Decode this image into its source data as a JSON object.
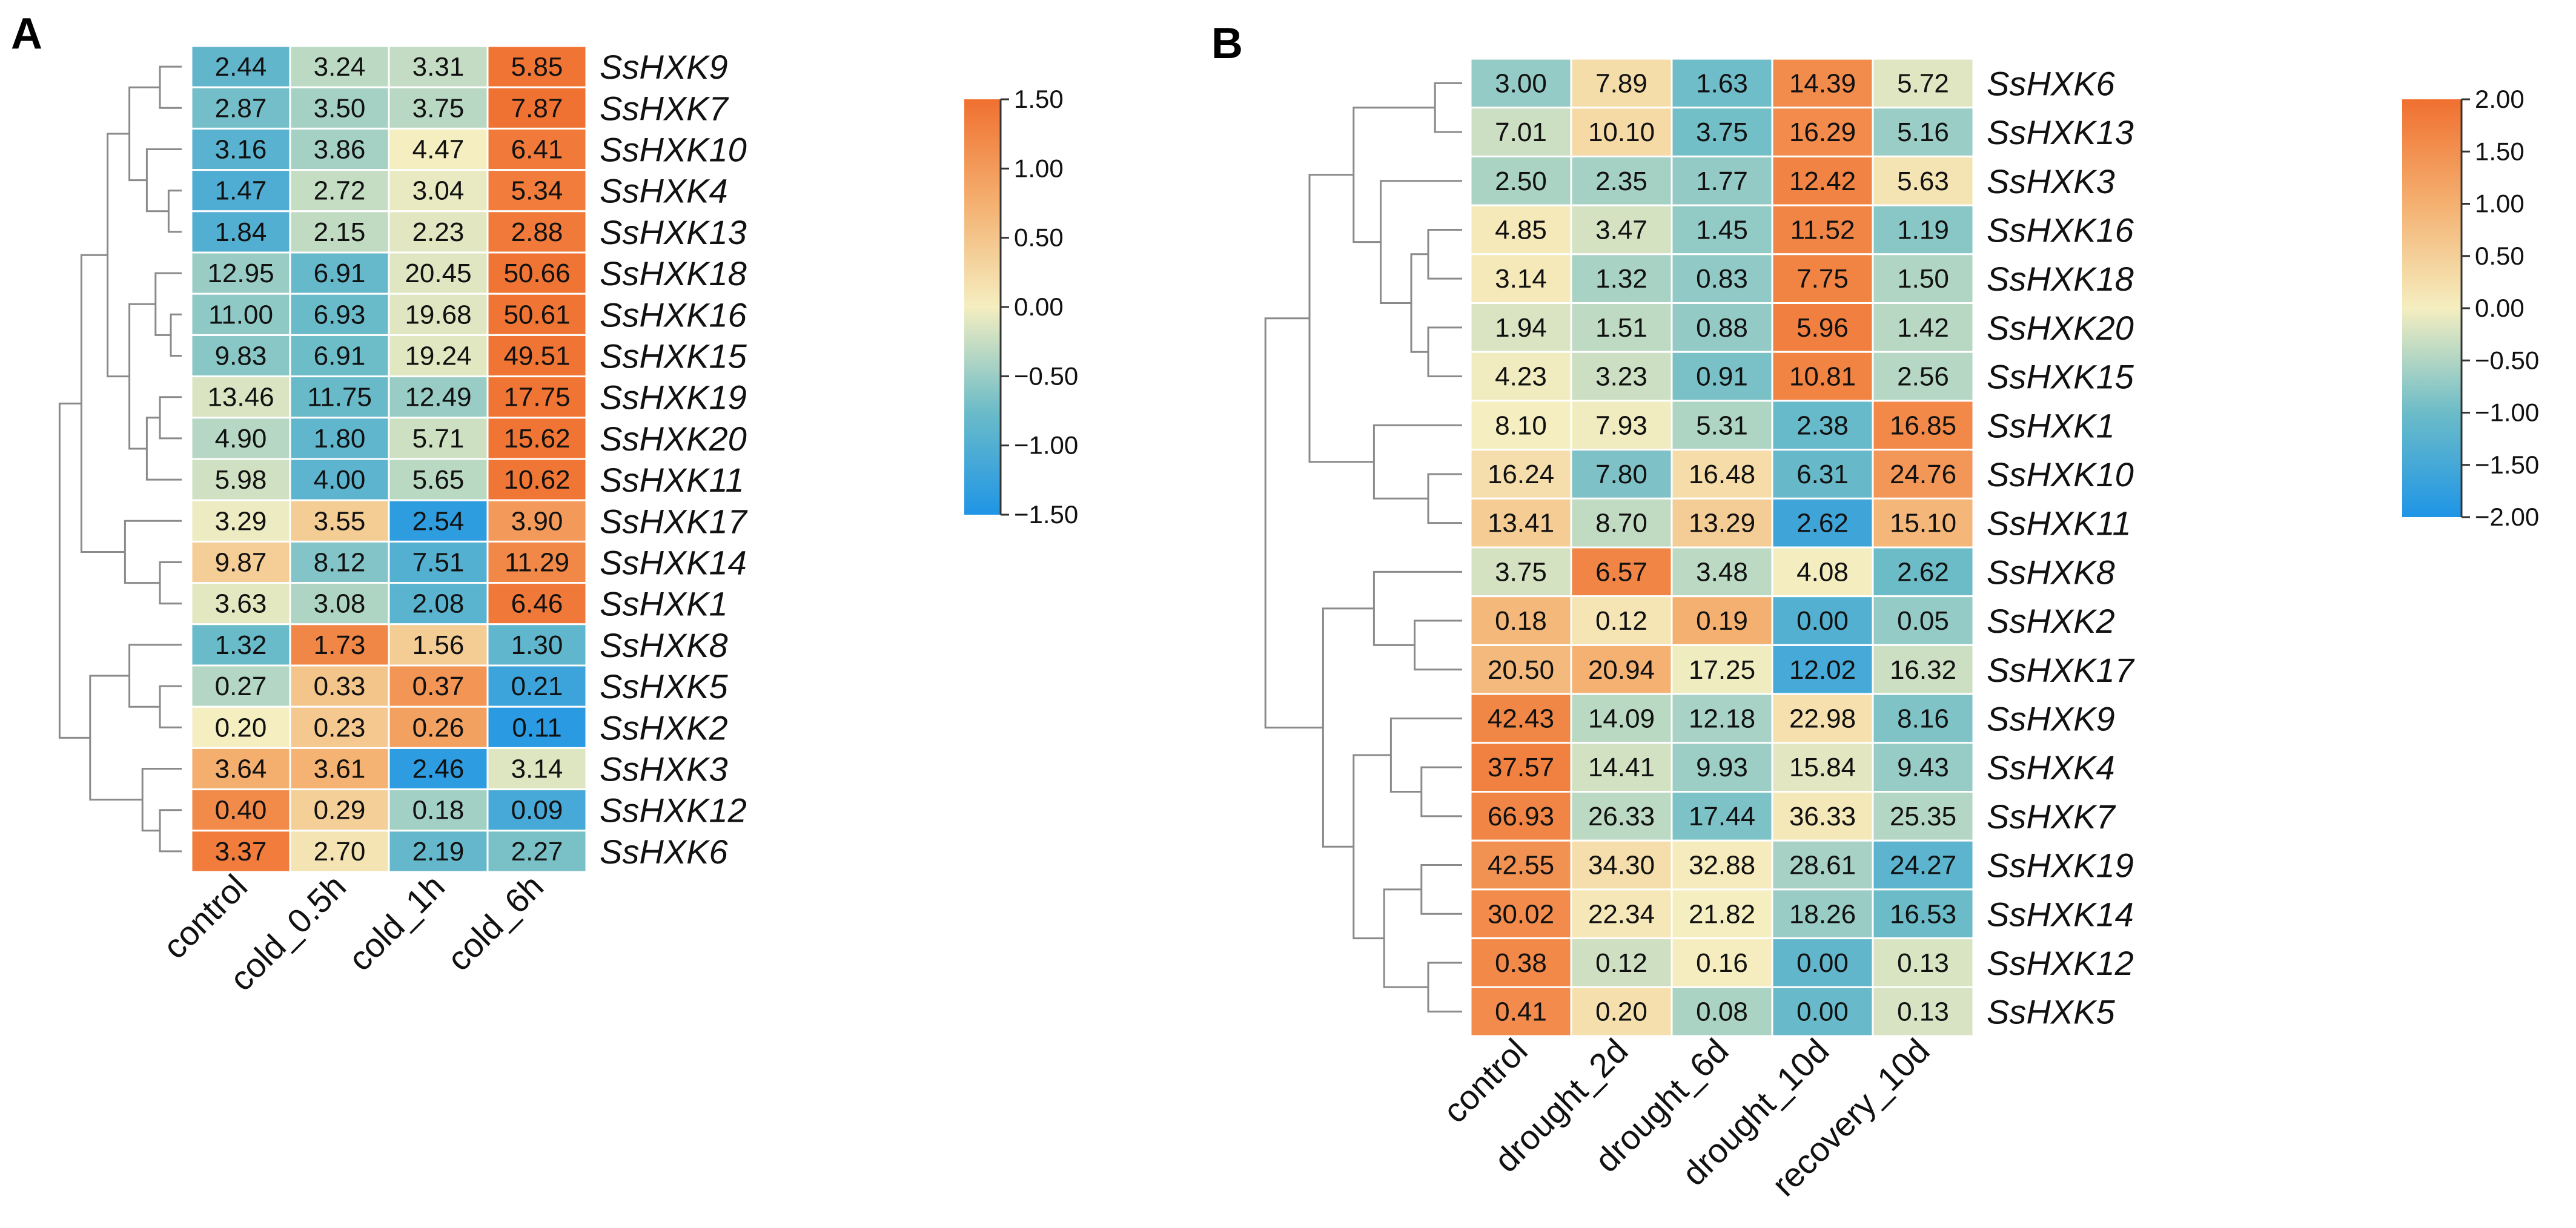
{
  "chart_data": [
    {
      "type": "heatmap",
      "panel_label": "A",
      "rows": [
        "SsHXK9",
        "SsHXK7",
        "SsHXK10",
        "SsHXK4",
        "SsHXK13",
        "SsHXK18",
        "SsHXK16",
        "SsHXK15",
        "SsHXK19",
        "SsHXK20",
        "SsHXK11",
        "SsHXK17",
        "SsHXK14",
        "SsHXK1",
        "SsHXK8",
        "SsHXK5",
        "SsHXK2",
        "SsHXK3",
        "SsHXK12",
        "SsHXK6"
      ],
      "columns": [
        "control",
        "cold_0.5h",
        "cold_1h",
        "cold_6h"
      ],
      "values": [
        [
          "2.44",
          "3.24",
          "3.31",
          "5.85"
        ],
        [
          "2.87",
          "3.50",
          "3.75",
          "7.87"
        ],
        [
          "3.16",
          "3.86",
          "4.47",
          "6.41"
        ],
        [
          "1.47",
          "2.72",
          "3.04",
          "5.34"
        ],
        [
          "1.84",
          "2.15",
          "2.23",
          "2.88"
        ],
        [
          "12.95",
          "6.91",
          "20.45",
          "50.66"
        ],
        [
          "11.00",
          "6.93",
          "19.68",
          "50.61"
        ],
        [
          "9.83",
          "6.91",
          "19.24",
          "49.51"
        ],
        [
          "13.46",
          "11.75",
          "12.49",
          "17.75"
        ],
        [
          "4.90",
          "1.80",
          "5.71",
          "15.62"
        ],
        [
          "5.98",
          "4.00",
          "5.65",
          "10.62"
        ],
        [
          "3.29",
          "3.55",
          "2.54",
          "3.90"
        ],
        [
          "9.87",
          "8.12",
          "7.51",
          "11.29"
        ],
        [
          "3.63",
          "3.08",
          "2.08",
          "6.46"
        ],
        [
          "1.32",
          "1.73",
          "1.56",
          "1.30"
        ],
        [
          "0.27",
          "0.33",
          "0.37",
          "0.21"
        ],
        [
          "0.20",
          "0.23",
          "0.26",
          "0.11"
        ],
        [
          "3.64",
          "3.61",
          "2.46",
          "3.14"
        ],
        [
          "0.40",
          "0.29",
          "0.18",
          "0.09"
        ],
        [
          "3.37",
          "2.70",
          "2.19",
          "2.27"
        ]
      ],
      "colorbar": {
        "range": [
          -1.5,
          1.5
        ],
        "ticks": [
          "1.50",
          "1.00",
          "0.50",
          "0.00",
          "−0.50",
          "−1.00",
          "−1.50"
        ],
        "colors": [
          "#f07030",
          "#f5e8b5",
          "#2a9de0"
        ]
      }
    },
    {
      "type": "heatmap",
      "panel_label": "B",
      "rows": [
        "SsHXK6",
        "SsHXK13",
        "SsHXK3",
        "SsHXK16",
        "SsHXK18",
        "SsHXK20",
        "SsHXK15",
        "SsHXK1",
        "SsHXK10",
        "SsHXK11",
        "SsHXK8",
        "SsHXK2",
        "SsHXK17",
        "SsHXK9",
        "SsHXK4",
        "SsHXK7",
        "SsHXK19",
        "SsHXK14",
        "SsHXK12",
        "SsHXK5"
      ],
      "columns": [
        "control",
        "drought_2d",
        "drought_6d",
        "drought_10d",
        "recovery_10d"
      ],
      "values": [
        [
          "3.00",
          "7.89",
          "1.63",
          "14.39",
          "5.72"
        ],
        [
          "7.01",
          "10.10",
          "3.75",
          "16.29",
          "5.16"
        ],
        [
          "2.50",
          "2.35",
          "1.77",
          "12.42",
          "5.63"
        ],
        [
          "4.85",
          "3.47",
          "1.45",
          "11.52",
          "1.19"
        ],
        [
          "3.14",
          "1.32",
          "0.83",
          "7.75",
          "1.50"
        ],
        [
          "1.94",
          "1.51",
          "0.88",
          "5.96",
          "1.42"
        ],
        [
          "4.23",
          "3.23",
          "0.91",
          "10.81",
          "2.56"
        ],
        [
          "8.10",
          "7.93",
          "5.31",
          "2.38",
          "16.85"
        ],
        [
          "16.24",
          "7.80",
          "16.48",
          "6.31",
          "24.76"
        ],
        [
          "13.41",
          "8.70",
          "13.29",
          "2.62",
          "15.10"
        ],
        [
          "3.75",
          "6.57",
          "3.48",
          "4.08",
          "2.62"
        ],
        [
          "0.18",
          "0.12",
          "0.19",
          "0.00",
          "0.05"
        ],
        [
          "20.50",
          "20.94",
          "17.25",
          "12.02",
          "16.32"
        ],
        [
          "42.43",
          "14.09",
          "12.18",
          "22.98",
          "8.16"
        ],
        [
          "37.57",
          "14.41",
          "9.93",
          "15.84",
          "9.43"
        ],
        [
          "66.93",
          "26.33",
          "17.44",
          "36.33",
          "25.35"
        ],
        [
          "42.55",
          "34.30",
          "32.88",
          "28.61",
          "24.27"
        ],
        [
          "30.02",
          "22.34",
          "21.82",
          "18.26",
          "16.53"
        ],
        [
          "0.38",
          "0.12",
          "0.16",
          "0.00",
          "0.13"
        ],
        [
          "0.41",
          "0.20",
          "0.08",
          "0.00",
          "0.13"
        ]
      ],
      "colorbar": {
        "range": [
          -2,
          2
        ],
        "ticks": [
          "2.00",
          "1.50",
          "1.00",
          "0.50",
          "0.00",
          "−0.50",
          "−1.00",
          "−1.50",
          "−2.00"
        ],
        "colors": [
          "#f07030",
          "#f5e8b5",
          "#2a9de0"
        ]
      }
    }
  ]
}
